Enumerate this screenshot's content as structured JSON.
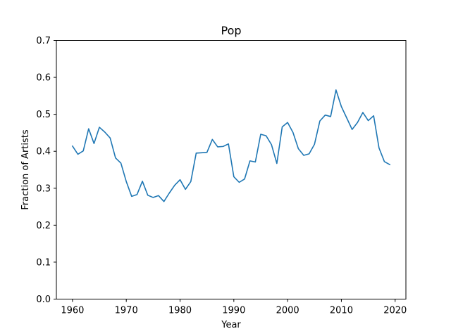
{
  "chart_data": {
    "type": "line",
    "title": "Pop",
    "xlabel": "Year",
    "ylabel": "Fraction of Artists",
    "xlim": [
      1957,
      2022
    ],
    "ylim": [
      0,
      0.7
    ],
    "xticks": [
      1960,
      1970,
      1980,
      1990,
      2000,
      2010,
      2020
    ],
    "yticks": [
      0.0,
      0.1,
      0.2,
      0.3,
      0.4,
      0.5,
      0.6,
      0.7
    ],
    "xtick_labels": [
      "1960",
      "1970",
      "1980",
      "1990",
      "2000",
      "2010",
      "2020"
    ],
    "ytick_labels": [
      "0.0",
      "0.1",
      "0.2",
      "0.3",
      "0.4",
      "0.5",
      "0.6",
      "0.7"
    ],
    "grid": false,
    "color": "#1f77b4",
    "series": [
      {
        "x": [
          1960,
          1961,
          1962,
          1963,
          1964,
          1965,
          1966,
          1967,
          1968,
          1969,
          1970,
          1971,
          1972,
          1973,
          1974,
          1975,
          1976,
          1977,
          1978,
          1979,
          1980,
          1981,
          1982,
          1983,
          1984,
          1985,
          1986,
          1987,
          1988,
          1989,
          1990,
          1991,
          1992,
          1993,
          1994,
          1995,
          1996,
          1997,
          1998,
          1999,
          2000,
          2001,
          2002,
          2003,
          2004,
          2005,
          2006,
          2007,
          2008,
          2009,
          2010,
          2011,
          2012,
          2013,
          2014,
          2015,
          2016,
          2017,
          2018,
          2019
        ],
        "values": [
          0.414,
          0.392,
          0.401,
          0.461,
          0.421,
          0.465,
          0.452,
          0.436,
          0.382,
          0.368,
          0.318,
          0.278,
          0.283,
          0.319,
          0.281,
          0.275,
          0.28,
          0.264,
          0.287,
          0.308,
          0.323,
          0.297,
          0.318,
          0.395,
          0.396,
          0.397,
          0.432,
          0.412,
          0.413,
          0.42,
          0.331,
          0.316,
          0.325,
          0.374,
          0.371,
          0.446,
          0.442,
          0.418,
          0.367,
          0.466,
          0.478,
          0.451,
          0.407,
          0.389,
          0.393,
          0.419,
          0.482,
          0.498,
          0.494,
          0.566,
          0.521,
          0.49,
          0.459,
          0.478,
          0.505,
          0.483,
          0.496,
          0.409,
          0.372,
          0.364
        ]
      }
    ]
  }
}
